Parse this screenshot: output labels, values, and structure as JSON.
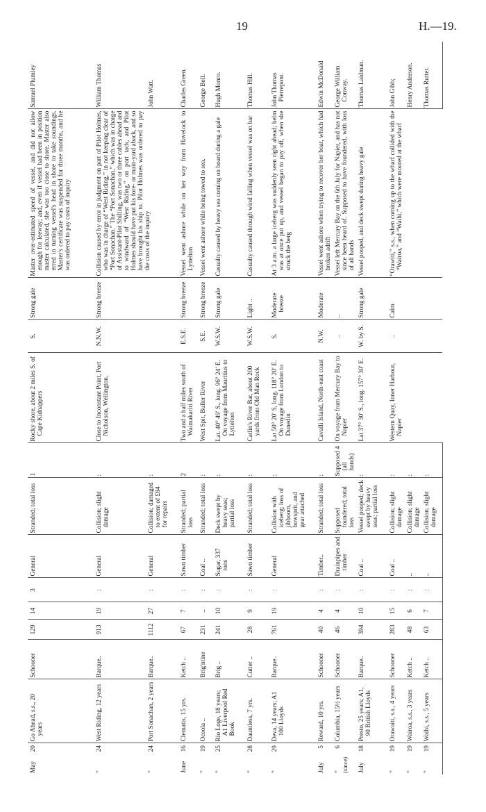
{
  "header": {
    "page_number": "19",
    "reference": "H.—19."
  },
  "rows": [
    {
      "month": "May",
      "day": "20",
      "vessel": "Go Ahead, s.s., 20 years",
      "rig": "Schooner",
      "tonnage": "129",
      "crew": "14",
      "passengers": "3",
      "cargo": "General",
      "nature": "Stranded; total loss",
      "lives": "1",
      "place": "Rocky shore, about 2 miles S. of Cape Kidnappers",
      "wind": "S.",
      "force": "Strong gale",
      "description": "Master over-estimated speed of vessel, and did not allow enough for leeway; and, even if vessel had been in position master calculated, she was too close to shore. Master also erred in turning vessel's head in shore to take soundings. Master's certificate was suspended for three months, and he was ordered to pay costs of inquiry",
      "master": "Samuel Plumley"
    },
    {
      "month": "\"",
      "day": "24",
      "vessel": "West Riding, 12 years",
      "rig": "Barque..",
      "tonnage": "913",
      "crew": "19",
      "passengers": ":",
      "cargo": "General",
      "nature": "Collision; slight damage",
      "lives": ":",
      "place": "Close to Inconstant Point, Port Nicholson, Wellington.",
      "wind": "N.N.W.",
      "force": "Strong breeze",
      "description": "Collision caused by error in judgment on part of Pilot Holmes, who was in charge of “West Riding,” in not keeping clear of “Port Sonachan.” The “Port Sonachan,” which was in charge of Assistant-Pilot Shilling, was two or three cables ahead and to windward of “West Riding,” on port tack, and Pilot Holmes should have put his fore- or main-yard aback, and so have brought his ship to. Pilot Holmes was ordered to pay the costs of the inquiry",
      "master": "William Thomas"
    },
    {
      "month": "\"",
      "day": "24",
      "vessel": "Port Sonachan, 2 years",
      "rig": "Barque..",
      "tonnage": "1112",
      "crew": "27",
      "passengers": ":",
      "cargo": "General",
      "nature": "Collision; damaged to extent of £84 for repairs",
      "lives": ":",
      "master": "John Watt."
    },
    {
      "month": "June",
      "day": "16",
      "vessel": "Clematis, 15 yrs.",
      "rig": "Ketch ..",
      "tonnage": "67",
      "crew": "7",
      "passengers": ":",
      "cargo": "Sawn timber",
      "nature": "Stranded; partial loss",
      "lives": "2",
      "place": "Two and a half miles south of Waimakariri River",
      "wind": "E.S.E.",
      "force": "Strong breeze",
      "description": "Vessel went ashore while on her way from Havelock to Lyttelton",
      "master": "Charles Green."
    },
    {
      "month": "\"",
      "day": "19",
      "vessel": "Oceola ..",
      "rig": "Brig'ntine",
      "tonnage": "231",
      "crew": "..",
      "passengers": ":",
      "cargo": "Coal ..",
      "nature": "Stranded; total loss",
      "lives": ":",
      "place": "West Spit, Buller River",
      "wind": "S.E.",
      "force": "Strong breeze",
      "description": "Vessel went ashore while being towed to sea.",
      "master": "George Bell."
    },
    {
      "month": "\"",
      "day": "25",
      "vessel": "Rio Loge, 18 years; A1 Liverpool Red Book",
      "rig": "Brig ..",
      "tonnage": "241",
      "crew": "10",
      "passengers": ":",
      "cargo": "Sugar, 337 tons",
      "nature": "Deck swept by heavy seas; partial loss",
      "lives": ":",
      "place": "Lat. 40° 49′ S., long. 96° 24′ E. On voyage from Mauritius to Lyttelton",
      "wind": "W.S.W.",
      "force": "Strong gale",
      "description": "Casualty caused by heavy sea coming on board during a gale",
      "master": "Hugh Monro."
    },
    {
      "month": "\"",
      "day": "28",
      "vessel": "Dauntless, 7 yrs.",
      "rig": "Cutter ..",
      "tonnage": "28",
      "crew": "9",
      "passengers": ":",
      "cargo": "Sawn timber",
      "nature": "Stranded; total loss",
      "lives": ":",
      "place": "Catlin's River Bar, about 200 yards from Old Man Rock",
      "wind": "W.S.W.",
      "force": "Light ..",
      "description": "Casualty caused through wind falling when vessel was on bar",
      "master": "Thomas Hill."
    },
    {
      "month": "\"",
      "day": "29",
      "vessel": "Deva, 14 years; A1 100 Lloyds",
      "rig": "Barque..",
      "tonnage": "761",
      "crew": "19",
      "passengers": ":",
      "cargo": "General",
      "nature": "Collision with iceberg; loss of jibboom, bowsprit, and gear attached",
      "lives": ":",
      "place": "Lat 50° 20′ S, long. 118° 20′ E. On voyage from London to Dunedin",
      "wind": "S.",
      "force": "Moderate breeze",
      "description": "At 3 a.m. a large iceberg was suddenly seen right ahead; helm was at once put up, and vessel began to pay off, when she struck the berg",
      "master": "John Thomas Pierrepont."
    },
    {
      "month": "July",
      "day": "5",
      "vessel": "Reward, 10 yrs.",
      "rig": "Schooner",
      "tonnage": "40",
      "crew": "4",
      "passengers": ":",
      "cargo": "Timber..",
      "nature": "Stranded; total loss",
      "lives": ":",
      "place": "Cavalli Island, North-east coast",
      "wind": "N.W.",
      "force": "Moderate",
      "description": "Vessel went ashore when trying to recover her boat, which had broken adrift",
      "master": "Edwin McDonald"
    },
    {
      "month": "\"",
      "day": "6",
      "note": "(since)",
      "vessel": "Columbia, 15½ years",
      "rig": "Schooner",
      "tonnage": "46",
      "crew": "4",
      "passengers": ":",
      "cargo": "Drainpipes and timber",
      "nature": "Supposed foundered; total loss",
      "lives": "Supposed 4 (all hands)",
      "place": "On voyage from Mercury Bay to Napier",
      "wind": "..",
      "force": "..",
      "description": "Vessel left Mercury Bay on the 6th July for Napier, and has not since been heard of. Supposed to have foundered, with loss of all hands",
      "master": "George William Conway."
    },
    {
      "month": "July",
      "day": "18",
      "vessel": "Presto, 25 years; A1, 90 British Lloyds",
      "rig": "Barque..",
      "tonnage": "394",
      "crew": "10",
      "passengers": ":",
      "cargo": "Coal ..",
      "nature": "Vessel pooped; deck swept by heavy seas; partial loss",
      "lives": ":",
      "place": "Lat 37° 30′ S., long. 157° 30′ E.",
      "wind": "W. by S.",
      "force": "Strong gale",
      "description": "Vessel pooped, and deck swept during heavy gale",
      "master": "Thomas Laidman."
    },
    {
      "month": "\"",
      "day": "19",
      "vessel": "Orawaiti, s.s., 4 years",
      "rig": "Schooner",
      "tonnage": "283",
      "crew": "15",
      "passengers": ":",
      "cargo": "Coal ..",
      "nature": "Collision; slight damage",
      "lives": ":",
      "place": "Western Quay, Inner Harbour, Napier",
      "wind": "..",
      "force": "Calm",
      "description": "“Orawiti,” s.s., when coming up to the wharf collided with the “Wairoa,” and “Waihi,” which were moored at the wharf",
      "master": "John Gibb;"
    },
    {
      "month": "\"",
      "day": "19",
      "vessel": "Wairoa, s.s., 3 years",
      "rig": "Ketch ..",
      "tonnage": "48",
      "crew": "6",
      "passengers": ":",
      "cargo": "..",
      "nature": "Collision; slight damage",
      "lives": ":",
      "master": "Henry Anderson."
    },
    {
      "month": "\"",
      "day": "19",
      "vessel": "Waihi, s.s., 5 years",
      "rig": "Ketch ..",
      "tonnage": "63",
      "crew": "7",
      "passengers": ":",
      "cargo": "..",
      "nature": "Collision; slight damage",
      "lives": ":",
      "master": "Thomas Rutter."
    }
  ]
}
